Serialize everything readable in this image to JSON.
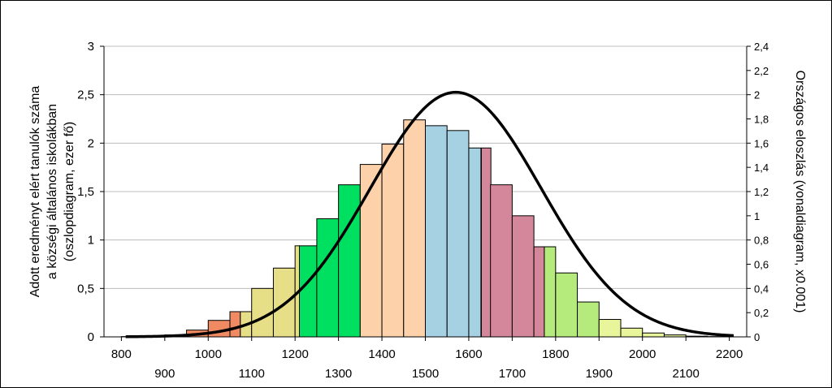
{
  "chart_data": {
    "type": "bar",
    "title": "",
    "ylabel_lines": [
      "Adott eredményt elért tanulók száma",
      "a községi általános iskolákban",
      "(oszlopdiagram, ezer fő)"
    ],
    "y2label": "Országos eloszlás (vonaldiagram, x0.001)",
    "x_range": [
      760,
      2240
    ],
    "ylim": [
      0,
      3
    ],
    "y2lim": [
      0,
      2.4
    ],
    "x_ticks": [
      800,
      900,
      1000,
      1100,
      1200,
      1300,
      1400,
      1500,
      1600,
      1700,
      1800,
      1900,
      2000,
      2100,
      2200
    ],
    "x_tick_labels": [
      "800",
      "900",
      "1000",
      "1100",
      "1200",
      "1300",
      "1400",
      "1500",
      "1600",
      "1700",
      "1800",
      "1900",
      "2000",
      "2100",
      "2200"
    ],
    "y_ticks": [
      0,
      0.5,
      1,
      1.5,
      2,
      2.5,
      3
    ],
    "y_tick_labels": [
      "0",
      "0,5",
      "1",
      "1,5",
      "2",
      "2,5",
      "3"
    ],
    "y2_ticks": [
      0,
      0.2,
      0.4,
      0.6,
      0.8,
      1,
      1.2,
      1.4,
      1.6,
      1.8,
      2,
      2.2,
      2.4
    ],
    "y2_tick_labels": [
      "0",
      "0,2",
      "0,4",
      "0,6",
      "0,8",
      "1",
      "1,2",
      "1,4",
      "1,6",
      "1,8",
      "2",
      "2,2",
      "2,4"
    ],
    "grid": "horizontal",
    "bar_width": 50,
    "bars": [
      {
        "x": 825,
        "value": 0.003,
        "color": "#ef8a62"
      },
      {
        "x": 875,
        "value": 0.007,
        "color": "#ef8a62"
      },
      {
        "x": 925,
        "value": 0.02,
        "color": "#ef8a62"
      },
      {
        "x": 975,
        "value": 0.07,
        "color": "#ef8a62"
      },
      {
        "x": 1025,
        "value": 0.17,
        "color": "#ef8a62"
      },
      {
        "x": 1062,
        "value": 0.26,
        "color": "#ef8a62",
        "width": 24
      },
      {
        "x": 1087,
        "value": 0.26,
        "color": "#e7df87",
        "width": 26
      },
      {
        "x": 1125,
        "value": 0.5,
        "color": "#e7df87"
      },
      {
        "x": 1175,
        "value": 0.71,
        "color": "#e7df87"
      },
      {
        "x": 1205,
        "value": 0.94,
        "color": "#e7df87",
        "width": 10
      },
      {
        "x": 1230,
        "value": 0.94,
        "color": "#00e060",
        "width": 40
      },
      {
        "x": 1275,
        "value": 1.22,
        "color": "#00e060"
      },
      {
        "x": 1325,
        "value": 1.57,
        "color": "#00e060"
      },
      {
        "x": 1375,
        "value": 1.78,
        "color": "#fdd1a9"
      },
      {
        "x": 1425,
        "value": 1.99,
        "color": "#fdd1a9"
      },
      {
        "x": 1475,
        "value": 2.24,
        "color": "#fdd1a9"
      },
      {
        "x": 1525,
        "value": 2.18,
        "color": "#a6d1e3"
      },
      {
        "x": 1575,
        "value": 2.13,
        "color": "#a6d1e3"
      },
      {
        "x": 1614,
        "value": 1.95,
        "color": "#a6d1e3",
        "width": 28
      },
      {
        "x": 1640,
        "value": 1.95,
        "color": "#d4869a",
        "width": 22
      },
      {
        "x": 1675,
        "value": 1.57,
        "color": "#d4869a"
      },
      {
        "x": 1725,
        "value": 1.25,
        "color": "#d4869a"
      },
      {
        "x": 1762,
        "value": 0.93,
        "color": "#d4869a",
        "width": 24
      },
      {
        "x": 1787,
        "value": 0.93,
        "color": "#b5ea7c",
        "width": 26
      },
      {
        "x": 1825,
        "value": 0.66,
        "color": "#b5ea7c"
      },
      {
        "x": 1875,
        "value": 0.36,
        "color": "#b5ea7c"
      },
      {
        "x": 1925,
        "value": 0.18,
        "color": "#e9f59b"
      },
      {
        "x": 1975,
        "value": 0.09,
        "color": "#e9f59b"
      },
      {
        "x": 2025,
        "value": 0.04,
        "color": "#e9f59b"
      },
      {
        "x": 2075,
        "value": 0.02,
        "color": "#e9f59b"
      },
      {
        "x": 2125,
        "value": 0.007,
        "color": "#e9f59b"
      },
      {
        "x": 2175,
        "value": 0.003,
        "color": "#e9f59b"
      }
    ],
    "curve": {
      "type": "normal-distribution",
      "mean": 1570,
      "sd": 197,
      "peak_value": 2.02,
      "axis": "right",
      "x_range": [
        810,
        2210
      ]
    }
  }
}
